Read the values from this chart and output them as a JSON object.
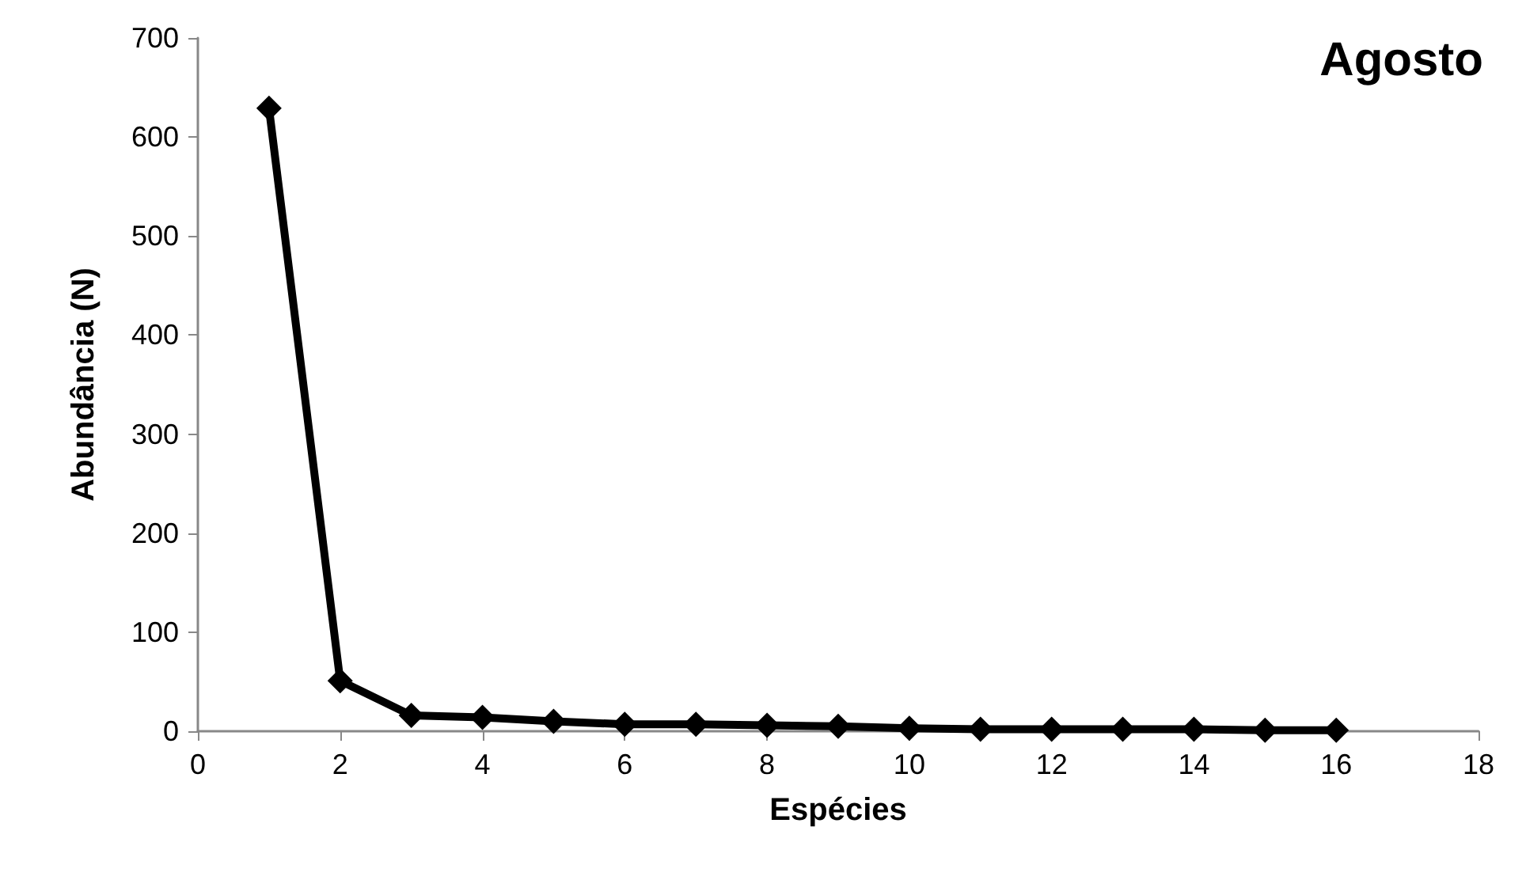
{
  "chart_data": {
    "type": "line",
    "title": "Agosto",
    "xlabel": "Espécies",
    "ylabel": "Abundância (N)",
    "x": [
      1,
      2,
      3,
      4,
      5,
      6,
      7,
      8,
      9,
      10,
      11,
      12,
      13,
      14,
      15,
      16
    ],
    "series": [
      {
        "color": "#000000",
        "values": [
          629,
          51,
          16,
          14,
          10,
          7,
          7,
          6,
          5,
          3,
          2,
          2,
          2,
          2,
          1,
          1
        ]
      }
    ],
    "xlim": [
      0,
      18
    ],
    "xticks": [
      0,
      2,
      4,
      6,
      8,
      10,
      12,
      14,
      16,
      18
    ],
    "ylim": [
      0,
      700
    ],
    "yticks": [
      0,
      100,
      200,
      300,
      400,
      500,
      600,
      700
    ],
    "grid": false,
    "marker": "diamond",
    "line_style": "solid"
  }
}
